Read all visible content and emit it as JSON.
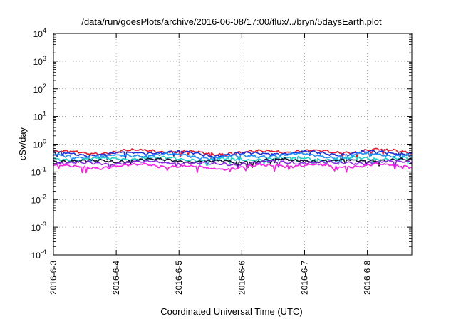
{
  "chart_data": {
    "type": "line",
    "title": "/data/run/goesPlots/archive/2016-06-08/17:00/flux/../bryn/5daysEarth.plot",
    "xlabel": "Coordinated Universal Time (UTC)",
    "ylabel": "cSv/day",
    "y_scale": "log",
    "ylim": [
      0.0001,
      10000
    ],
    "y_ticks": [
      {
        "base": "10",
        "exp": "-4",
        "value": 0.0001
      },
      {
        "base": "10",
        "exp": "-3",
        "value": 0.001
      },
      {
        "base": "10",
        "exp": "-2",
        "value": 0.01
      },
      {
        "base": "10",
        "exp": "-1",
        "value": 0.1
      },
      {
        "base": "10",
        "exp": "0",
        "value": 1
      },
      {
        "base": "10",
        "exp": "1",
        "value": 10
      },
      {
        "base": "10",
        "exp": "2",
        "value": 100
      },
      {
        "base": "10",
        "exp": "3",
        "value": 1000
      },
      {
        "base": "10",
        "exp": "4",
        "value": 10000
      }
    ],
    "x_ticks": [
      "2016-6-3",
      "2016-6-4",
      "2016-6-5",
      "2016-6-6",
      "2016-6-7",
      "2016-6-8"
    ],
    "xlim": [
      "2016-06-03 00:00",
      "2016-06-08 17:00"
    ],
    "grid": true,
    "series": [
      {
        "color": "#e8182c",
        "x": [
          "2016-06-03 00:00",
          "2016-06-03 12:00",
          "2016-06-04 00:00",
          "2016-06-04 12:00",
          "2016-06-05 00:00",
          "2016-06-05 12:00",
          "2016-06-06 00:00",
          "2016-06-06 12:00",
          "2016-06-07 00:00",
          "2016-06-07 12:00",
          "2016-06-08 00:00",
          "2016-06-08 17:00"
        ],
        "y": [
          0.55,
          0.48,
          0.52,
          0.6,
          0.55,
          0.45,
          0.5,
          0.55,
          0.58,
          0.5,
          0.6,
          0.55
        ]
      },
      {
        "color": "#1a2ee0",
        "x": [
          "2016-06-03 00:00",
          "2016-06-03 12:00",
          "2016-06-04 00:00",
          "2016-06-04 12:00",
          "2016-06-05 00:00",
          "2016-06-05 12:00",
          "2016-06-06 00:00",
          "2016-06-06 12:00",
          "2016-06-07 00:00",
          "2016-06-07 12:00",
          "2016-06-08 00:00",
          "2016-06-08 17:00"
        ],
        "y": [
          0.48,
          0.42,
          0.46,
          0.52,
          0.5,
          0.4,
          0.44,
          0.48,
          0.5,
          0.44,
          0.52,
          0.48
        ]
      },
      {
        "color": "#1e90ff",
        "x": [
          "2016-06-03 00:00",
          "2016-06-03 12:00",
          "2016-06-04 00:00",
          "2016-06-04 12:00",
          "2016-06-05 00:00",
          "2016-06-05 12:00",
          "2016-06-06 00:00",
          "2016-06-06 12:00",
          "2016-06-07 00:00",
          "2016-06-07 12:00",
          "2016-06-08 00:00",
          "2016-06-08 17:00"
        ],
        "y": [
          0.4,
          0.35,
          0.38,
          0.42,
          0.4,
          0.34,
          0.36,
          0.4,
          0.42,
          0.36,
          0.44,
          0.4
        ]
      },
      {
        "color": "#20d0c8",
        "x": [
          "2016-06-03 00:00",
          "2016-06-03 12:00",
          "2016-06-04 00:00",
          "2016-06-04 12:00",
          "2016-06-05 00:00",
          "2016-06-05 12:00",
          "2016-06-06 00:00",
          "2016-06-06 12:00",
          "2016-06-07 00:00",
          "2016-06-07 12:00",
          "2016-06-08 00:00",
          "2016-06-08 17:00"
        ],
        "y": [
          0.3,
          0.28,
          0.3,
          0.32,
          0.3,
          0.27,
          0.28,
          0.3,
          0.31,
          0.28,
          0.32,
          0.3
        ]
      },
      {
        "color": "#151530",
        "x": [
          "2016-06-03 00:00",
          "2016-06-03 12:00",
          "2016-06-04 00:00",
          "2016-06-04 12:00",
          "2016-06-05 00:00",
          "2016-06-05 12:00",
          "2016-06-06 00:00",
          "2016-06-06 12:00",
          "2016-06-07 00:00",
          "2016-06-07 12:00",
          "2016-06-08 00:00",
          "2016-06-08 17:00"
        ],
        "y": [
          0.26,
          0.24,
          0.25,
          0.27,
          0.26,
          0.23,
          0.24,
          0.26,
          0.27,
          0.24,
          0.27,
          0.26
        ]
      },
      {
        "color": "#8a2be2",
        "x": [
          "2016-06-03 00:00",
          "2016-06-03 12:00",
          "2016-06-04 00:00",
          "2016-06-04 12:00",
          "2016-06-05 00:00",
          "2016-06-05 12:00",
          "2016-06-06 00:00",
          "2016-06-06 12:00",
          "2016-06-07 00:00",
          "2016-06-07 12:00",
          "2016-06-08 00:00",
          "2016-06-08 17:00"
        ],
        "y": [
          0.22,
          0.2,
          0.21,
          0.23,
          0.22,
          0.19,
          0.2,
          0.22,
          0.23,
          0.2,
          0.23,
          0.22
        ]
      },
      {
        "color": "#ff1ee6",
        "x": [
          "2016-06-03 00:00",
          "2016-06-03 12:00",
          "2016-06-04 00:00",
          "2016-06-04 12:00",
          "2016-06-05 00:00",
          "2016-06-05 12:00",
          "2016-06-06 00:00",
          "2016-06-06 12:00",
          "2016-06-07 00:00",
          "2016-06-07 12:00",
          "2016-06-08 00:00",
          "2016-06-08 17:00"
        ],
        "y": [
          0.17,
          0.14,
          0.16,
          0.18,
          0.16,
          0.13,
          0.15,
          0.17,
          0.18,
          0.15,
          0.18,
          0.16
        ]
      }
    ]
  }
}
